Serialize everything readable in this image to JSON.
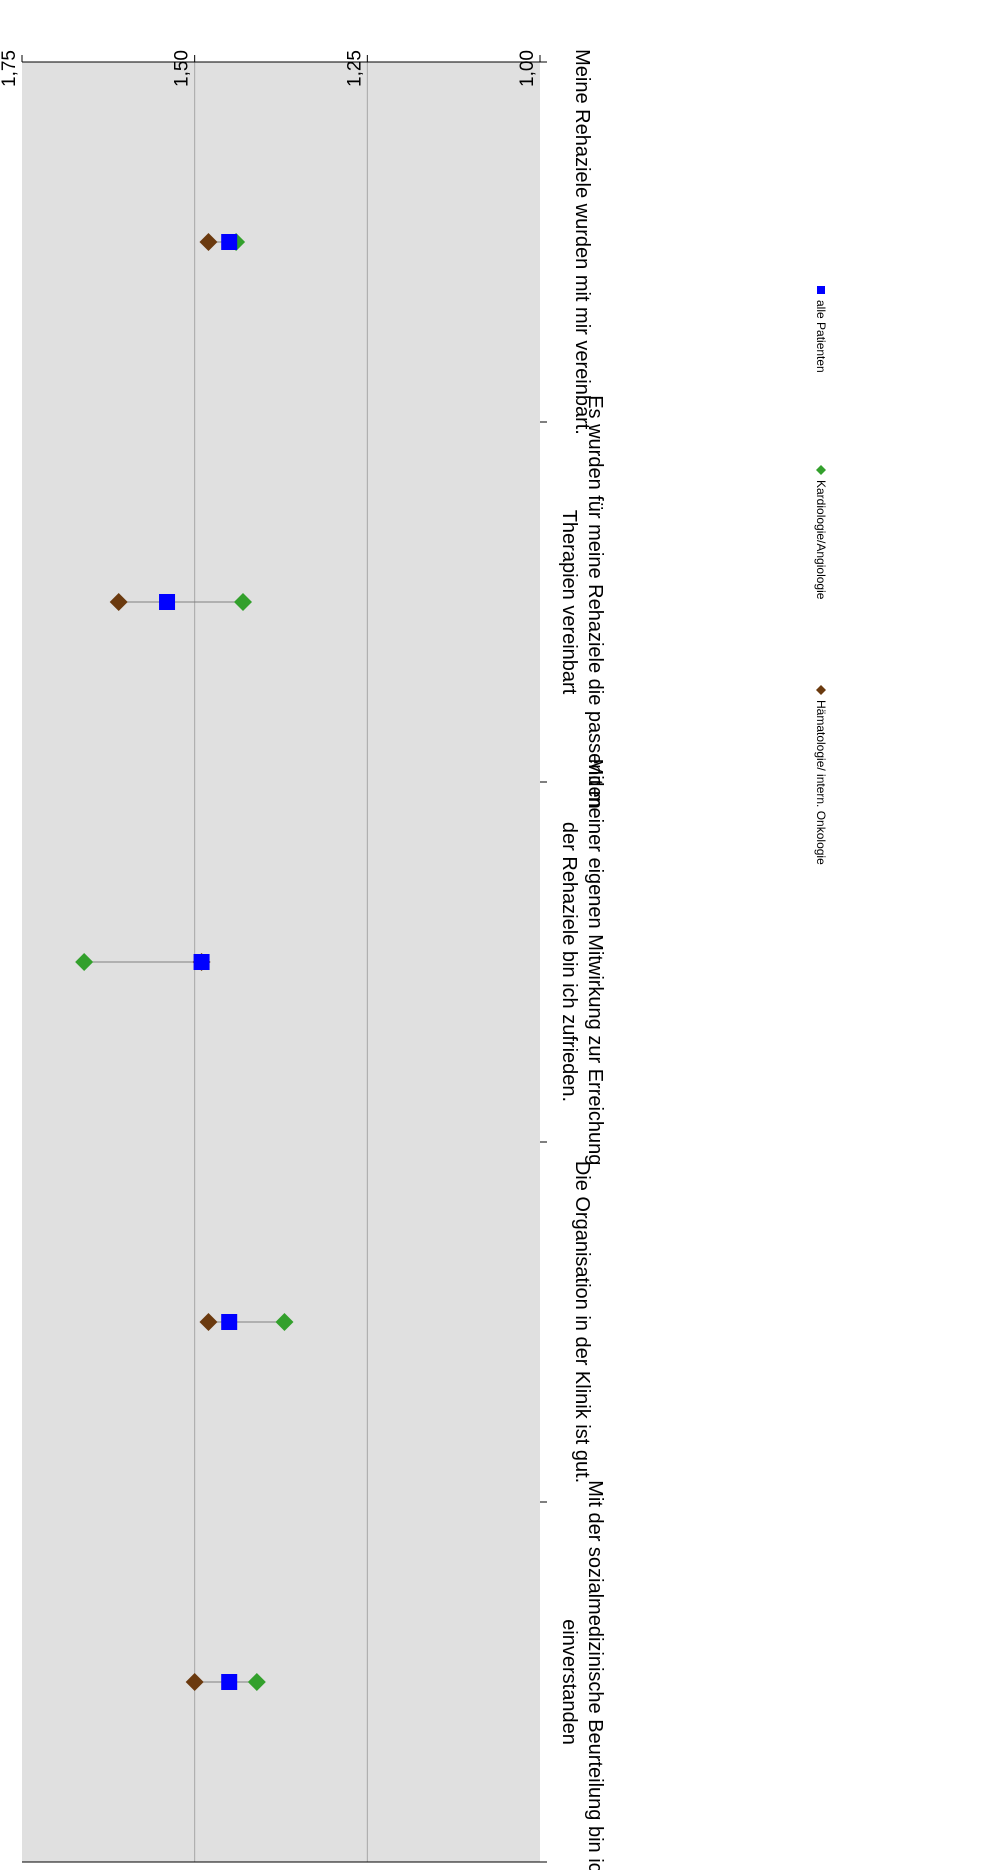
{
  "chart_data": {
    "type": "scatter",
    "orientation": "rotated-180",
    "categories": [
      [
        "Meine Rehaziele wurden mit mir vereinbart."
      ],
      [
        "Es wurden für meine Rehaziele die passenden",
        "Therapien vereinbart"
      ],
      [
        "Mit meiner eigenen Mitwirkung zur Erreichung",
        "der Rehaziele bin ich zufrieden."
      ],
      [
        "Die Organisation in der Klinik ist gut."
      ],
      [
        "Mit der sozialmedizinische Beurteilung bin ich",
        "einverstanden"
      ]
    ],
    "ylim": [
      1.0,
      1.75
    ],
    "yticks": [
      "1,00",
      "1,25",
      "1,50",
      "1,75"
    ],
    "ytick_values": [
      1.0,
      1.25,
      1.5,
      1.75
    ],
    "gridlines": [
      1.25,
      1.5
    ],
    "grid": true,
    "legend_position": "bottom",
    "series": [
      {
        "name": "alle Patienten",
        "marker": "square",
        "color": "#0000ff",
        "values": [
          1.45,
          1.54,
          1.49,
          1.45,
          1.45
        ]
      },
      {
        "name": "Kardiologie/Angiologie",
        "marker": "diamond",
        "color": "#33a02c",
        "values": [
          1.44,
          1.43,
          1.66,
          1.37,
          1.41
        ]
      },
      {
        "name": "Hämatologie/ intern. Onkologie",
        "marker": "diamond",
        "color": "#6b3a0f",
        "values": [
          1.48,
          1.61,
          1.49,
          1.48,
          1.5
        ]
      }
    ]
  }
}
